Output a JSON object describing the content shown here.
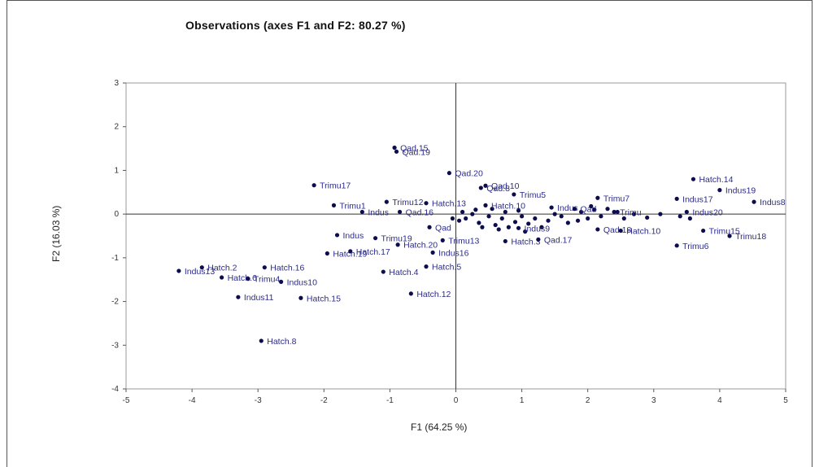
{
  "chart_data": {
    "type": "scatter",
    "title": "Observations (axes F1 and F2: 80.27 %)",
    "xlabel": "F1 (64.25 %)",
    "ylabel": "F2 (16.03 %)",
    "xlim": [
      -5,
      5
    ],
    "ylim": [
      -4,
      3
    ],
    "xticks": [
      "-5",
      "-4",
      "-3",
      "-2",
      "-1",
      "0",
      "1",
      "2",
      "3",
      "4",
      "5"
    ],
    "yticks": [
      "3",
      "2",
      "1",
      "0",
      "-1",
      "-2",
      "-3",
      "-4"
    ],
    "grid": false,
    "zero_lines": true,
    "marker_color": "#0d0d4d",
    "label_color": "#2c2c8a",
    "points": [
      {
        "label": "Qad.15",
        "x": -0.93,
        "y": 1.52
      },
      {
        "label": "Qad.19",
        "x": -0.9,
        "y": 1.43
      },
      {
        "label": "Qad.20",
        "x": -0.1,
        "y": 0.94
      },
      {
        "label": "Qad.10",
        "x": 0.45,
        "y": 0.65
      },
      {
        "label": "Qad.8",
        "x": 0.38,
        "y": 0.6
      },
      {
        "label": "Trimu5",
        "x": 0.88,
        "y": 0.45
      },
      {
        "label": "Trimu17",
        "x": -2.15,
        "y": 0.66
      },
      {
        "label": "Trimu7",
        "x": 2.15,
        "y": 0.37
      },
      {
        "label": "Hatch.14",
        "x": 3.6,
        "y": 0.8
      },
      {
        "label": "Indus19",
        "x": 4.0,
        "y": 0.55
      },
      {
        "label": "Indus17",
        "x": 3.35,
        "y": 0.35
      },
      {
        "label": "Indus8",
        "x": 4.52,
        "y": 0.28
      },
      {
        "label": "Trimu1",
        "x": -1.85,
        "y": 0.2
      },
      {
        "label": "Indus",
        "x": -1.42,
        "y": 0.05
      },
      {
        "label": "Trimu12",
        "x": -1.05,
        "y": 0.28
      },
      {
        "label": "Qad.16",
        "x": -0.85,
        "y": 0.05
      },
      {
        "label": "Hatch.13",
        "x": -0.45,
        "y": 0.25
      },
      {
        "label": "Hatch.10",
        "x": 0.45,
        "y": 0.2
      },
      {
        "label": "Indus",
        "x": 1.45,
        "y": 0.15
      },
      {
        "label": "Qad",
        "x": 1.8,
        "y": 0.12
      },
      {
        "label": "Trimu",
        "x": 2.4,
        "y": 0.05
      },
      {
        "label": "Indus20",
        "x": 3.5,
        "y": 0.05
      },
      {
        "label": "Qad",
        "x": -0.4,
        "y": -0.3
      },
      {
        "label": "Indus9",
        "x": 0.95,
        "y": -0.32
      },
      {
        "label": "Qad.18",
        "x": 2.15,
        "y": -0.35
      },
      {
        "label": "Hatch.10",
        "x": 2.5,
        "y": -0.38
      },
      {
        "label": "Trimu15",
        "x": 3.75,
        "y": -0.38
      },
      {
        "label": "Trimu18",
        "x": 4.15,
        "y": -0.5
      },
      {
        "label": "Trimu6",
        "x": 3.35,
        "y": -0.72
      },
      {
        "label": "Indus",
        "x": -1.8,
        "y": -0.48
      },
      {
        "label": "Trimu19",
        "x": -1.22,
        "y": -0.55
      },
      {
        "label": "Hatch.20",
        "x": -0.88,
        "y": -0.7
      },
      {
        "label": "Hatch.19",
        "x": -1.95,
        "y": -0.9
      },
      {
        "label": "Hatch.17",
        "x": -1.6,
        "y": -0.85
      },
      {
        "label": "Indus16",
        "x": -0.35,
        "y": -0.88
      },
      {
        "label": "Trimu13",
        "x": -0.2,
        "y": -0.6
      },
      {
        "label": "Hatch.3",
        "x": 0.75,
        "y": -0.62
      },
      {
        "label": "Qad.17",
        "x": 1.25,
        "y": -0.58
      },
      {
        "label": "Hatch.5",
        "x": -0.45,
        "y": -1.2
      },
      {
        "label": "Hatch.4",
        "x": -1.1,
        "y": -1.32
      },
      {
        "label": "Hatch.12",
        "x": -0.68,
        "y": -1.82
      },
      {
        "label": "Hatch.2",
        "x": -3.85,
        "y": -1.22
      },
      {
        "label": "Indus13",
        "x": -4.2,
        "y": -1.3
      },
      {
        "label": "Hatch.16",
        "x": -2.9,
        "y": -1.22
      },
      {
        "label": "Hatch.6",
        "x": -3.55,
        "y": -1.45
      },
      {
        "label": "Trimu4",
        "x": -3.15,
        "y": -1.48
      },
      {
        "label": "Indus10",
        "x": -2.65,
        "y": -1.55
      },
      {
        "label": "Indus11",
        "x": -3.3,
        "y": -1.9
      },
      {
        "label": "Hatch.15",
        "x": -2.35,
        "y": -1.92
      },
      {
        "label": "Hatch.8",
        "x": -2.95,
        "y": -2.9
      }
    ],
    "extra_points": [
      {
        "x": 0.05,
        "y": -0.15
      },
      {
        "x": 0.15,
        "y": -0.1
      },
      {
        "x": 0.25,
        "y": 0.0
      },
      {
        "x": 0.35,
        "y": -0.2
      },
      {
        "x": 0.5,
        "y": -0.05
      },
      {
        "x": 0.6,
        "y": -0.25
      },
      {
        "x": 0.7,
        "y": -0.1
      },
      {
        "x": 0.8,
        "y": -0.3
      },
      {
        "x": 0.9,
        "y": -0.18
      },
      {
        "x": 1.0,
        "y": -0.05
      },
      {
        "x": 1.1,
        "y": -0.22
      },
      {
        "x": 1.2,
        "y": -0.1
      },
      {
        "x": 1.3,
        "y": -0.3
      },
      {
        "x": 1.4,
        "y": -0.15
      },
      {
        "x": 1.6,
        "y": -0.05
      },
      {
        "x": 1.7,
        "y": -0.2
      },
      {
        "x": 1.9,
        "y": 0.05
      },
      {
        "x": 2.0,
        "y": -0.1
      },
      {
        "x": 2.1,
        "y": 0.1
      },
      {
        "x": 2.2,
        "y": -0.05
      },
      {
        "x": 2.3,
        "y": 0.12
      },
      {
        "x": 2.55,
        "y": -0.1
      },
      {
        "x": 2.7,
        "y": 0.0
      },
      {
        "x": 2.9,
        "y": -0.08
      },
      {
        "x": 3.1,
        "y": 0.0
      },
      {
        "x": 3.4,
        "y": -0.05
      },
      {
        "x": 3.55,
        "y": -0.1
      },
      {
        "x": 0.3,
        "y": 0.1
      },
      {
        "x": 0.55,
        "y": 0.12
      },
      {
        "x": 0.75,
        "y": 0.05
      },
      {
        "x": 0.65,
        "y": -0.35
      },
      {
        "x": 1.05,
        "y": -0.4
      },
      {
        "x": 0.1,
        "y": 0.05
      },
      {
        "x": -0.05,
        "y": -0.1
      },
      {
        "x": 0.4,
        "y": -0.3
      },
      {
        "x": 1.5,
        "y": 0.0
      },
      {
        "x": 2.45,
        "y": 0.05
      },
      {
        "x": 1.85,
        "y": -0.15
      },
      {
        "x": 2.05,
        "y": 0.18
      },
      {
        "x": 0.95,
        "y": 0.08
      }
    ]
  }
}
